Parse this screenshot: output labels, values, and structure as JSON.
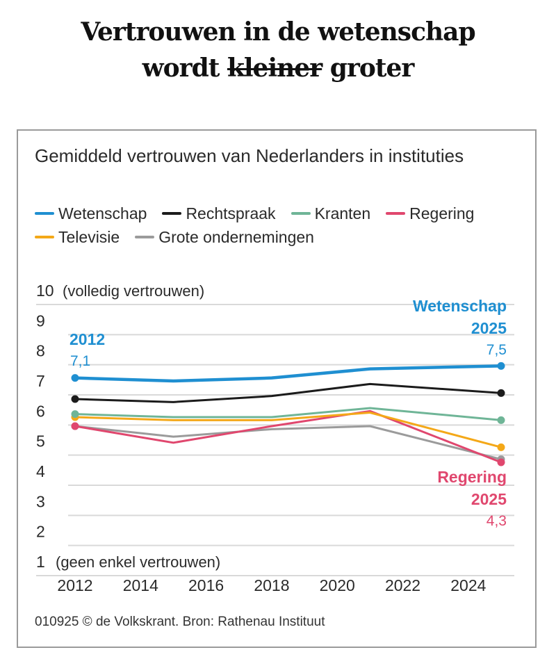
{
  "headline": {
    "line1": "Vertrouwen in de wetenschap",
    "line2_start": "wordt ",
    "line2_struck": "kleiner",
    "line2_end": " groter"
  },
  "chart_data": {
    "type": "line",
    "title": "Gemiddeld vertrouwen van Nederlanders in instituties",
    "x": [
      2012,
      2015,
      2018,
      2021,
      2025
    ],
    "xticks": [
      "2012",
      "2014",
      "2016",
      "2018",
      "2020",
      "2022",
      "2024"
    ],
    "xlim": [
      2011.6,
      2025.4
    ],
    "yticks": [
      "1",
      "2",
      "3",
      "4",
      "5",
      "6",
      "7",
      "8",
      "9",
      "10"
    ],
    "ylim": [
      1,
      10
    ],
    "ytick_top_note": "(volledig vertrouwen)",
    "ytick_bottom_note": "(geen enkel vertrouwen)",
    "grid": true,
    "legend_position": "top",
    "series": [
      {
        "name": "Wetenschap",
        "color": "#1f8fd1",
        "values": [
          7.1,
          7.0,
          7.1,
          7.4,
          7.5
        ]
      },
      {
        "name": "Rechtspraak",
        "color": "#1b1b1b",
        "values": [
          6.4,
          6.3,
          6.5,
          6.9,
          6.6
        ]
      },
      {
        "name": "Kranten",
        "color": "#6fb597",
        "values": [
          5.9,
          5.8,
          5.8,
          6.1,
          5.7
        ]
      },
      {
        "name": "Regering",
        "color": "#e0476e",
        "values": [
          5.5,
          4.95,
          5.5,
          6.0,
          4.3
        ]
      },
      {
        "name": "Televisie",
        "color": "#f4a818",
        "values": [
          5.8,
          5.7,
          5.7,
          5.95,
          4.8
        ]
      },
      {
        "name": "Grote ondernemingen",
        "color": "#9b9b9b",
        "values": [
          5.5,
          5.15,
          5.4,
          5.5,
          4.4
        ]
      }
    ],
    "annotations": [
      {
        "series": "Wetenschap",
        "year_label": "2012",
        "value_label": "7,1"
      },
      {
        "series": "Wetenschap",
        "name_label": "Wetenschap",
        "year_label": "2025",
        "value_label": "7,5"
      },
      {
        "series": "Regering",
        "name_label": "Regering",
        "year_label": "2025",
        "value_label": "4,3"
      }
    ]
  },
  "footer": "010925 © de Volkskrant. Bron: Rathenau Instituut"
}
